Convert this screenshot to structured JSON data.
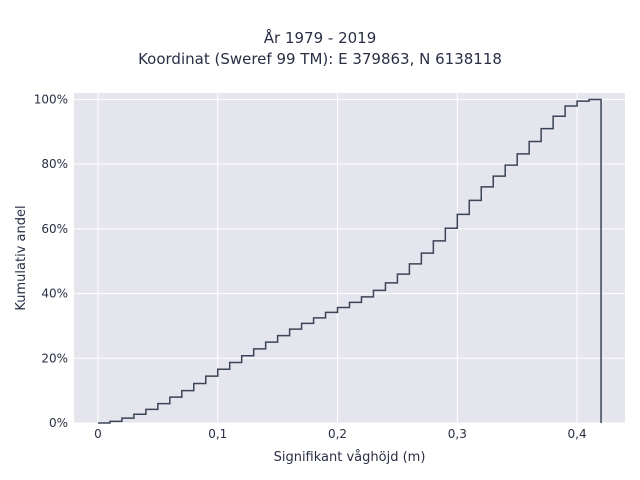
{
  "chart_data": {
    "type": "line",
    "step": "cumulative",
    "title": "År 1979 - 2019",
    "subtitle": "Koordinat (Sweref 99 TM): E 379863, N 6138118",
    "xlabel": "Signifikant våghöjd (m)",
    "ylabel": "Kumulativ andel",
    "xlim": [
      -0.02,
      0.44
    ],
    "ylim": [
      0,
      1.02
    ],
    "x_ticks": [
      {
        "value": 0,
        "label": "0"
      },
      {
        "value": 0.1,
        "label": "0,1"
      },
      {
        "value": 0.2,
        "label": "0,2"
      },
      {
        "value": 0.3,
        "label": "0,3"
      },
      {
        "value": 0.4,
        "label": "0,4"
      }
    ],
    "y_ticks": [
      {
        "value": 0,
        "label": "0%"
      },
      {
        "value": 0.2,
        "label": "20%"
      },
      {
        "value": 0.4,
        "label": "40%"
      },
      {
        "value": 0.6,
        "label": "60%"
      },
      {
        "value": 0.8,
        "label": "80%"
      },
      {
        "value": 1.0,
        "label": "100%"
      }
    ],
    "grid": true,
    "background_color": "#e5e5ee",
    "line_color": "#3b4456",
    "x": [
      0,
      0.01,
      0.02,
      0.03,
      0.04,
      0.05,
      0.06,
      0.07,
      0.08,
      0.09,
      0.1,
      0.11,
      0.12,
      0.13,
      0.14,
      0.15,
      0.16,
      0.17,
      0.18,
      0.19,
      0.2,
      0.21,
      0.22,
      0.23,
      0.24,
      0.25,
      0.26,
      0.27,
      0.28,
      0.29,
      0.3,
      0.31,
      0.32,
      0.33,
      0.34,
      0.35,
      0.36,
      0.37,
      0.38,
      0.39,
      0.4,
      0.41,
      0.42
    ],
    "values": [
      0.0,
      0.005,
      0.015,
      0.027,
      0.042,
      0.06,
      0.08,
      0.1,
      0.122,
      0.145,
      0.166,
      0.187,
      0.208,
      0.229,
      0.25,
      0.27,
      0.29,
      0.308,
      0.325,
      0.342,
      0.357,
      0.373,
      0.39,
      0.41,
      0.433,
      0.46,
      0.492,
      0.525,
      0.563,
      0.602,
      0.645,
      0.688,
      0.73,
      0.763,
      0.797,
      0.832,
      0.87,
      0.91,
      0.948,
      0.98,
      0.995,
      1.0,
      1.0
    ]
  }
}
